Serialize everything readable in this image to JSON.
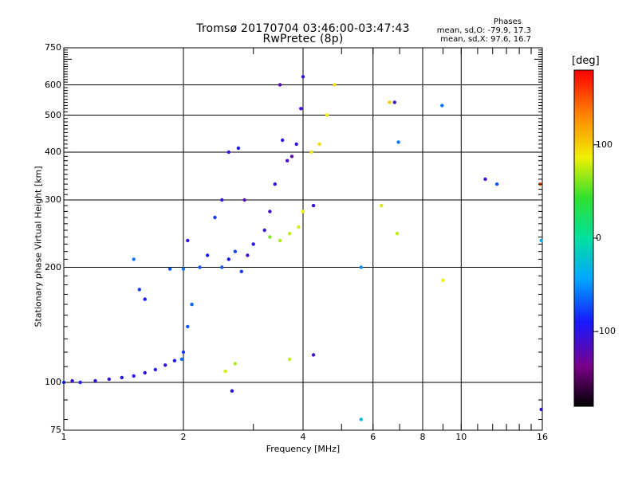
{
  "chart_data": {
    "type": "scatter",
    "title": "Tromsø 20170704 03:46:00-03:47:43",
    "subtitle": "RwPretec (8p)",
    "xlabel": "Frequency [MHz]",
    "ylabel": "Stationary phase Virtual Height [km]",
    "x_scale": "log",
    "y_scale": "log",
    "xlim": [
      1,
      16
    ],
    "ylim": [
      75,
      750
    ],
    "x_ticks": [
      1,
      2,
      4,
      6,
      8,
      10,
      16
    ],
    "y_ticks": [
      75,
      100,
      200,
      300,
      400,
      500,
      600,
      750
    ],
    "grid": true,
    "stats": {
      "heading": "Phases",
      "o_line": "mean, sd,O: -79.9, 17.3",
      "x_line": "mean, sd,X:  97.6, 16.7"
    },
    "colorbar": {
      "label": "[deg]",
      "range": [
        -180,
        180
      ],
      "ticks": [
        -100,
        0,
        100
      ]
    },
    "series": [
      {
        "values": [
          [
            1.0,
            100,
            -90
          ],
          [
            1.05,
            101,
            -100
          ],
          [
            1.1,
            100,
            -95
          ],
          [
            1.2,
            101,
            -100
          ],
          [
            1.3,
            102,
            -100
          ],
          [
            1.4,
            103,
            -95
          ],
          [
            1.5,
            104,
            -100
          ],
          [
            1.6,
            106,
            -100
          ],
          [
            1.7,
            108,
            -95
          ],
          [
            1.8,
            111,
            -100
          ],
          [
            1.9,
            114,
            -90
          ],
          [
            2.0,
            120,
            -80
          ],
          [
            2.05,
            140,
            -70
          ],
          [
            2.1,
            160,
            -65
          ]
        ]
      },
      {
        "values": [
          [
            1.5,
            210,
            -60
          ],
          [
            1.55,
            175,
            -80
          ],
          [
            1.6,
            165,
            -90
          ],
          [
            1.85,
            198,
            -70
          ],
          [
            2.0,
            198,
            -60
          ],
          [
            2.05,
            235,
            -100
          ],
          [
            2.2,
            200,
            -70
          ],
          [
            2.3,
            215,
            -90
          ],
          [
            2.4,
            270,
            -80
          ],
          [
            2.5,
            300,
            -100
          ],
          [
            2.5,
            200,
            -70
          ],
          [
            2.6,
            210,
            -90
          ],
          [
            2.7,
            220,
            -75
          ],
          [
            2.8,
            195,
            -80
          ],
          [
            2.6,
            400,
            -100
          ],
          [
            2.75,
            410,
            -90
          ],
          [
            2.9,
            215,
            -110
          ],
          [
            3.0,
            230,
            -100
          ],
          [
            3.2,
            250,
            -105
          ],
          [
            3.3,
            280,
            -110
          ],
          [
            3.4,
            330,
            -100
          ],
          [
            3.5,
            600,
            -120
          ],
          [
            3.55,
            430,
            -105
          ],
          [
            3.65,
            380,
            -110
          ],
          [
            3.75,
            390,
            -120
          ],
          [
            3.85,
            420,
            -105
          ],
          [
            3.95,
            520,
            -110
          ],
          [
            4.0,
            630,
            -105
          ]
        ]
      },
      {
        "values": [
          [
            3.3,
            240,
            60
          ],
          [
            3.5,
            235,
            70
          ],
          [
            3.7,
            245,
            75
          ],
          [
            3.9,
            255,
            80
          ],
          [
            4.0,
            280,
            85
          ],
          [
            4.2,
            400,
            90
          ],
          [
            4.4,
            420,
            95
          ],
          [
            4.6,
            500,
            85
          ],
          [
            4.8,
            600,
            90
          ],
          [
            2.55,
            107,
            80
          ],
          [
            2.7,
            112,
            70
          ],
          [
            3.7,
            115,
            75
          ],
          [
            6.3,
            290,
            80
          ],
          [
            6.9,
            245,
            75
          ],
          [
            9.0,
            185,
            85
          ]
        ]
      },
      {
        "values": [
          [
            2.85,
            300,
            -120
          ],
          [
            2.65,
            95,
            -100
          ],
          [
            4.25,
            118,
            -110
          ],
          [
            4.25,
            290,
            -100
          ],
          [
            6.8,
            540,
            -110
          ],
          [
            6.95,
            425,
            -60
          ],
          [
            8.95,
            530,
            -60
          ],
          [
            11.5,
            340,
            -110
          ],
          [
            12.3,
            330,
            -70
          ],
          [
            15.8,
            330,
            150
          ],
          [
            15.9,
            235,
            -40
          ],
          [
            15.9,
            85,
            -100
          ],
          [
            5.6,
            80,
            -30
          ],
          [
            5.6,
            200,
            -50
          ],
          [
            1.98,
            115,
            -60
          ],
          [
            6.6,
            540,
            100
          ]
        ]
      }
    ]
  }
}
